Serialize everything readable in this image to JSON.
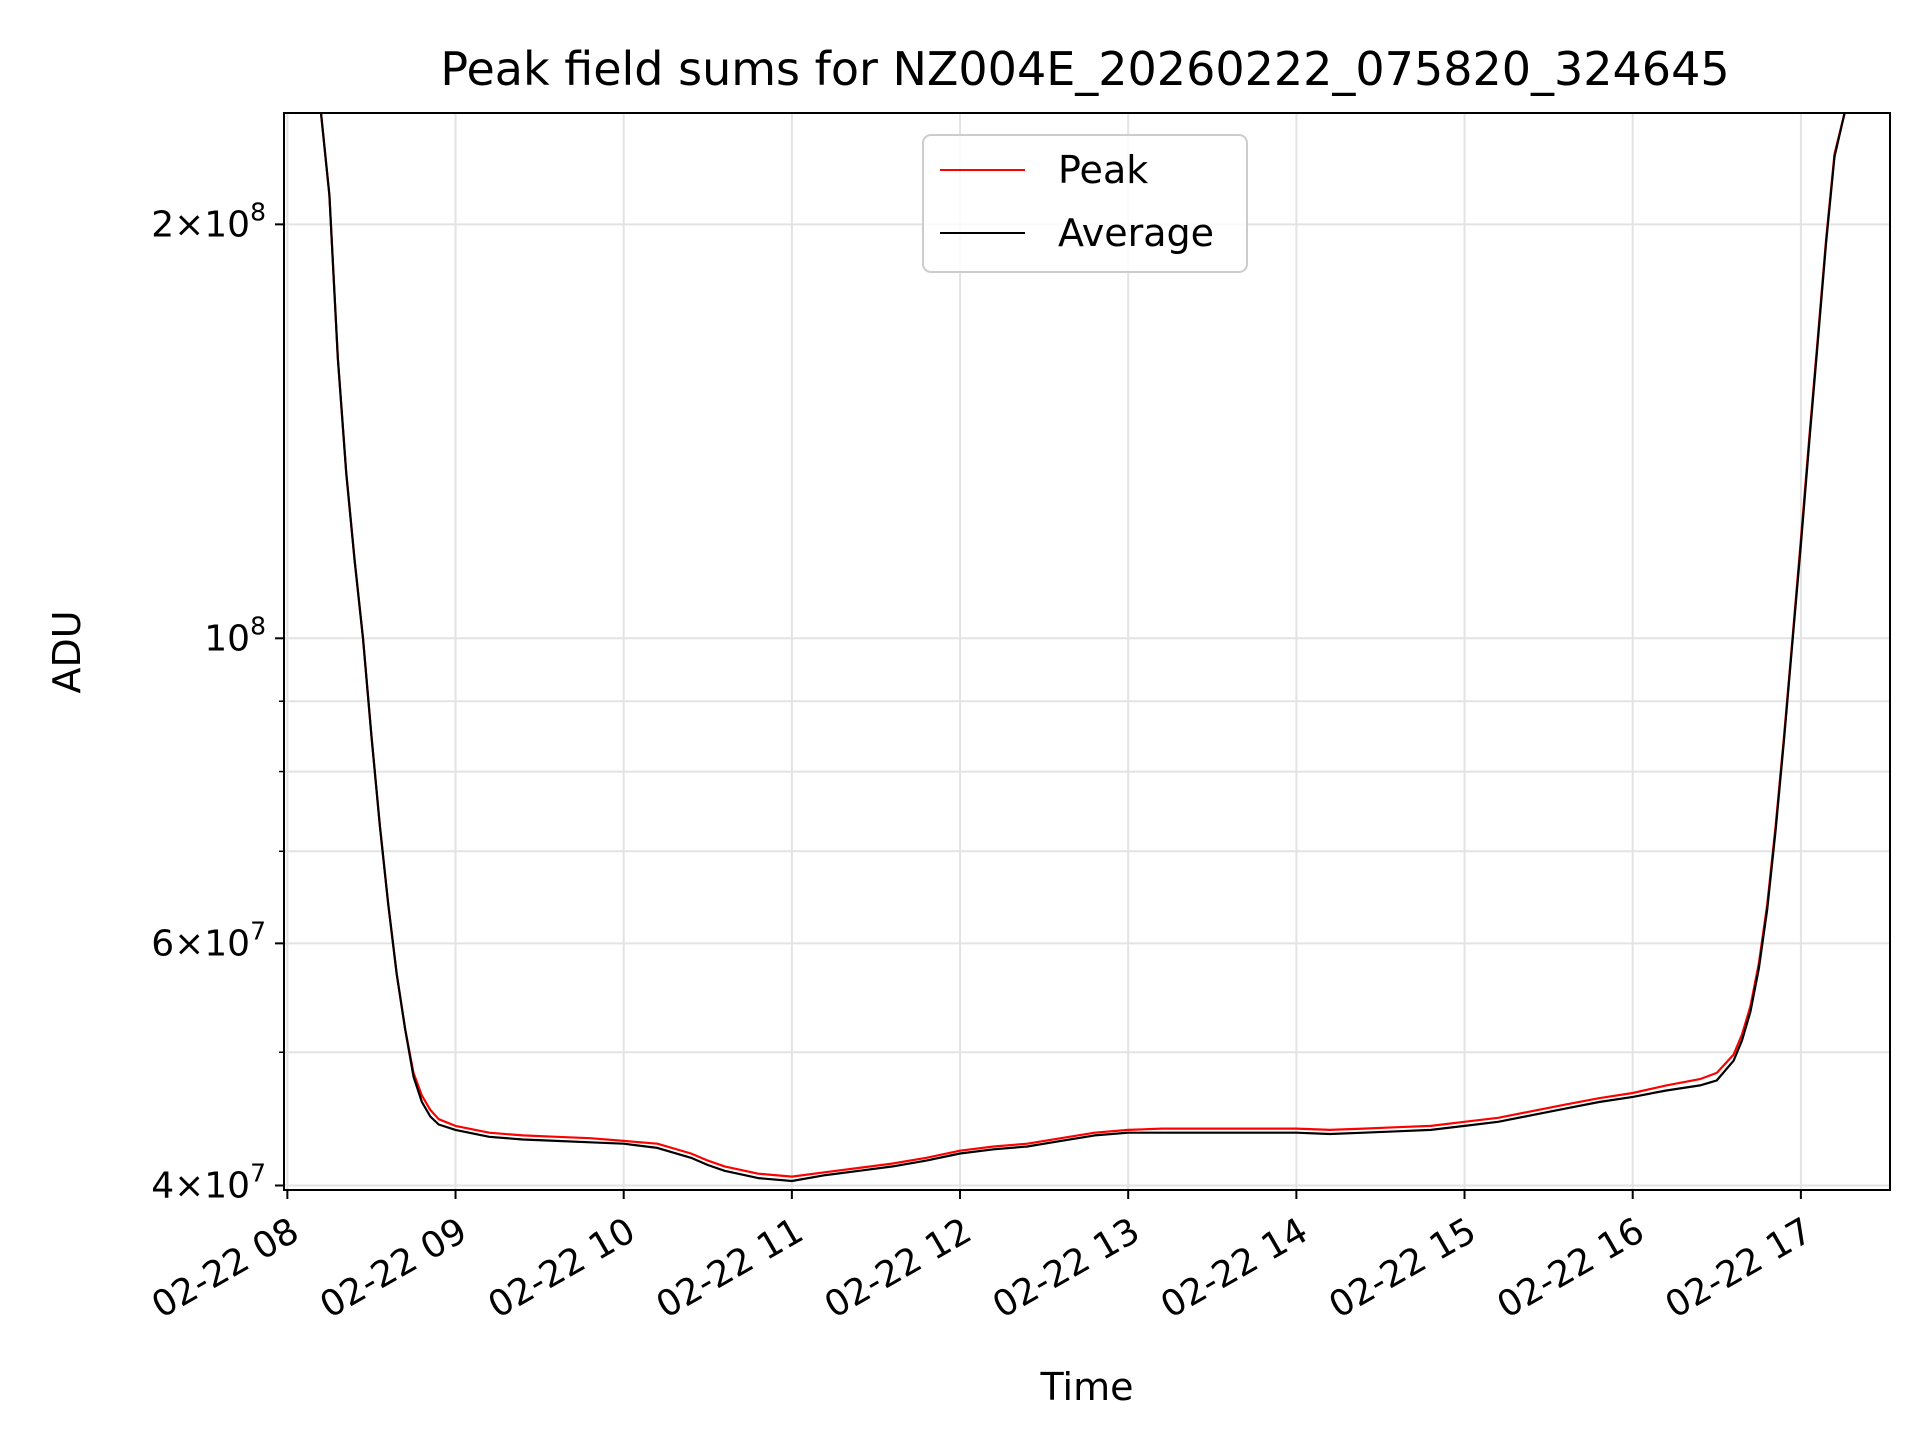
{
  "chart_data": {
    "type": "line",
    "title": "Peak field sums for NZ004E_20260222_075820_324645",
    "xlabel": "Time",
    "ylabel": "ADU",
    "yscale": "log",
    "grid": true,
    "legend_position": "top-center",
    "xlim_hours": [
      7.98,
      17.53
    ],
    "ylim": [
      39700000,
      241000000
    ],
    "x_ticks": [
      {
        "value": 8,
        "label": "02-22 08"
      },
      {
        "value": 9,
        "label": "02-22 09"
      },
      {
        "value": 10,
        "label": "02-22 10"
      },
      {
        "value": 11,
        "label": "02-22 11"
      },
      {
        "value": 12,
        "label": "02-22 12"
      },
      {
        "value": 13,
        "label": "02-22 13"
      },
      {
        "value": 14,
        "label": "02-22 14"
      },
      {
        "value": 15,
        "label": "02-22 15"
      },
      {
        "value": 16,
        "label": "02-22 16"
      },
      {
        "value": 17,
        "label": "02-22 17"
      }
    ],
    "y_ticks": [
      {
        "value": 40000000,
        "base": "4",
        "exp": "7"
      },
      {
        "value": 60000000,
        "base": "6",
        "exp": "7"
      },
      {
        "value": 100000000,
        "base": "",
        "exp": "8"
      },
      {
        "value": 200000000,
        "base": "2",
        "exp": "8"
      }
    ],
    "y_minor_ticks": [
      50000000,
      70000000,
      80000000,
      90000000
    ],
    "series": [
      {
        "name": "Peak",
        "color": "#ff0000",
        "points": [
          [
            8.2,
            241000000
          ],
          [
            8.25,
            210000000
          ],
          [
            8.3,
            160000000
          ],
          [
            8.35,
            132000000
          ],
          [
            8.4,
            114000000
          ],
          [
            8.45,
            100000000
          ],
          [
            8.5,
            85000000
          ],
          [
            8.55,
            73000000
          ],
          [
            8.6,
            64000000
          ],
          [
            8.65,
            57000000
          ],
          [
            8.7,
            52000000
          ],
          [
            8.75,
            48300000
          ],
          [
            8.8,
            46500000
          ],
          [
            8.85,
            45400000
          ],
          [
            8.9,
            44700000
          ],
          [
            9.0,
            44200000
          ],
          [
            9.2,
            43700000
          ],
          [
            9.4,
            43500000
          ],
          [
            9.6,
            43400000
          ],
          [
            9.8,
            43300000
          ],
          [
            10.0,
            43100000
          ],
          [
            10.2,
            42900000
          ],
          [
            10.4,
            42200000
          ],
          [
            10.5,
            41700000
          ],
          [
            10.6,
            41300000
          ],
          [
            10.8,
            40800000
          ],
          [
            11.0,
            40600000
          ],
          [
            11.2,
            40900000
          ],
          [
            11.4,
            41200000
          ],
          [
            11.6,
            41500000
          ],
          [
            11.8,
            41900000
          ],
          [
            12.0,
            42400000
          ],
          [
            12.2,
            42700000
          ],
          [
            12.4,
            42900000
          ],
          [
            12.6,
            43300000
          ],
          [
            12.8,
            43700000
          ],
          [
            13.0,
            43900000
          ],
          [
            13.2,
            44000000
          ],
          [
            13.4,
            44000000
          ],
          [
            13.6,
            44000000
          ],
          [
            13.8,
            44000000
          ],
          [
            14.0,
            44000000
          ],
          [
            14.2,
            43900000
          ],
          [
            14.4,
            44000000
          ],
          [
            14.6,
            44100000
          ],
          [
            14.8,
            44200000
          ],
          [
            15.0,
            44500000
          ],
          [
            15.2,
            44800000
          ],
          [
            15.4,
            45300000
          ],
          [
            15.6,
            45800000
          ],
          [
            15.8,
            46300000
          ],
          [
            16.0,
            46700000
          ],
          [
            16.2,
            47300000
          ],
          [
            16.4,
            47800000
          ],
          [
            16.5,
            48300000
          ],
          [
            16.6,
            49800000
          ],
          [
            16.65,
            51500000
          ],
          [
            16.7,
            54000000
          ],
          [
            16.75,
            58000000
          ],
          [
            16.8,
            64000000
          ],
          [
            16.85,
            73000000
          ],
          [
            16.9,
            85000000
          ],
          [
            16.95,
            100000000
          ],
          [
            17.0,
            118000000
          ],
          [
            17.05,
            140000000
          ],
          [
            17.1,
            165000000
          ],
          [
            17.15,
            195000000
          ],
          [
            17.2,
            225000000
          ],
          [
            17.26,
            241000000
          ]
        ]
      },
      {
        "name": "Average",
        "color": "#000000",
        "points": [
          [
            8.2,
            241000000
          ],
          [
            8.25,
            210000000
          ],
          [
            8.3,
            160000000
          ],
          [
            8.35,
            132000000
          ],
          [
            8.4,
            114000000
          ],
          [
            8.45,
            100000000
          ],
          [
            8.5,
            85000000
          ],
          [
            8.55,
            73000000
          ],
          [
            8.6,
            64000000
          ],
          [
            8.65,
            57000000
          ],
          [
            8.7,
            52000000
          ],
          [
            8.75,
            48000000
          ],
          [
            8.8,
            46000000
          ],
          [
            8.85,
            44900000
          ],
          [
            8.9,
            44300000
          ],
          [
            9.0,
            43900000
          ],
          [
            9.2,
            43400000
          ],
          [
            9.4,
            43200000
          ],
          [
            9.6,
            43100000
          ],
          [
            9.8,
            43000000
          ],
          [
            10.0,
            42900000
          ],
          [
            10.2,
            42600000
          ],
          [
            10.4,
            41900000
          ],
          [
            10.5,
            41400000
          ],
          [
            10.6,
            41000000
          ],
          [
            10.8,
            40500000
          ],
          [
            11.0,
            40300000
          ],
          [
            11.2,
            40700000
          ],
          [
            11.4,
            41000000
          ],
          [
            11.6,
            41300000
          ],
          [
            11.8,
            41700000
          ],
          [
            12.0,
            42200000
          ],
          [
            12.2,
            42500000
          ],
          [
            12.4,
            42700000
          ],
          [
            12.6,
            43100000
          ],
          [
            12.8,
            43500000
          ],
          [
            13.0,
            43700000
          ],
          [
            13.2,
            43700000
          ],
          [
            13.4,
            43700000
          ],
          [
            13.6,
            43700000
          ],
          [
            13.8,
            43700000
          ],
          [
            14.0,
            43700000
          ],
          [
            14.2,
            43600000
          ],
          [
            14.4,
            43700000
          ],
          [
            14.6,
            43800000
          ],
          [
            14.8,
            43900000
          ],
          [
            15.0,
            44200000
          ],
          [
            15.2,
            44500000
          ],
          [
            15.4,
            45000000
          ],
          [
            15.6,
            45500000
          ],
          [
            15.8,
            46000000
          ],
          [
            16.0,
            46400000
          ],
          [
            16.2,
            46900000
          ],
          [
            16.4,
            47300000
          ],
          [
            16.5,
            47700000
          ],
          [
            16.6,
            49300000
          ],
          [
            16.65,
            51000000
          ],
          [
            16.7,
            53500000
          ],
          [
            16.75,
            57500000
          ],
          [
            16.8,
            63500000
          ],
          [
            16.85,
            72500000
          ],
          [
            16.9,
            84500000
          ],
          [
            16.95,
            99500000
          ],
          [
            17.0,
            117000000
          ],
          [
            17.05,
            139000000
          ],
          [
            17.1,
            164000000
          ],
          [
            17.15,
            194000000
          ],
          [
            17.2,
            224000000
          ],
          [
            17.26,
            241000000
          ]
        ]
      }
    ]
  }
}
